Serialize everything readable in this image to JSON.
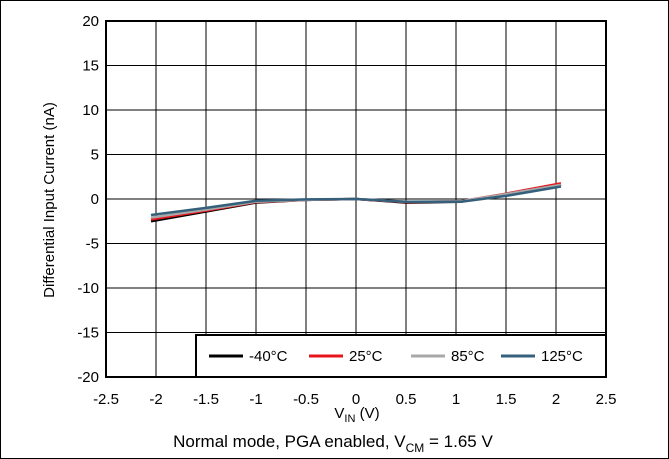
{
  "chart_data": {
    "type": "line",
    "xlabel": {
      "main": "V",
      "sub": "IN",
      "unit": " (V)"
    },
    "ylabel": "Differential Input Current (nA)",
    "xlim": [
      -2.5,
      2.5
    ],
    "ylim": [
      -20,
      20
    ],
    "xticks": [
      -2.5,
      -2,
      -1.5,
      -1,
      -0.5,
      0,
      0.5,
      1,
      1.5,
      2,
      2.5
    ],
    "yticks": [
      -20,
      -15,
      -10,
      -5,
      0,
      5,
      10,
      15,
      20
    ],
    "xtick_labels": [
      "-2.5",
      "-2",
      "-1.5",
      "-1",
      "-0.5",
      "0",
      "0.5",
      "1",
      "1.5",
      "2",
      "2.5"
    ],
    "ytick_labels": [
      "-20",
      "-15",
      "-10",
      "-5",
      "0",
      "5",
      "10",
      "15",
      "20"
    ],
    "grid": true,
    "legend_position": "bottom-right",
    "caption": {
      "pre": "Normal mode, PGA enabled, V",
      "sub": "CM",
      "post": " = 1.65 V"
    },
    "series": [
      {
        "name": "-40°C",
        "color": "#000000",
        "x": [
          -2.05,
          -1.5,
          -1,
          -0.5,
          0,
          0.5,
          1.05,
          1.5,
          2.05
        ],
        "y": [
          -2.5,
          -1.4,
          -0.4,
          -0.1,
          0,
          -0.4,
          -0.3,
          0.5,
          1.6
        ]
      },
      {
        "name": "25°C",
        "color": "#e8141c",
        "x": [
          -2.05,
          -1.5,
          -1,
          -0.5,
          0,
          0.5,
          1.05,
          1.5,
          2.05
        ],
        "y": [
          -2.3,
          -1.3,
          -0.35,
          -0.1,
          0,
          -0.35,
          -0.25,
          0.6,
          1.75
        ]
      },
      {
        "name": "85°C",
        "color": "#a8a8a8",
        "x": [
          -2.05,
          -1.5,
          -1,
          -0.5,
          0,
          0.5,
          1.05,
          1.5,
          2.05
        ],
        "y": [
          -2.1,
          -1.2,
          -0.3,
          -0.1,
          0,
          -0.3,
          -0.25,
          0.55,
          1.6
        ]
      },
      {
        "name": "125°C",
        "color": "#34607c",
        "x": [
          -2.05,
          -1.5,
          -1,
          -0.5,
          0,
          0.5,
          1.05,
          1.5,
          2.05
        ],
        "y": [
          -1.8,
          -1.0,
          -0.2,
          -0.05,
          0,
          -0.3,
          -0.3,
          0.35,
          1.4
        ]
      }
    ]
  }
}
